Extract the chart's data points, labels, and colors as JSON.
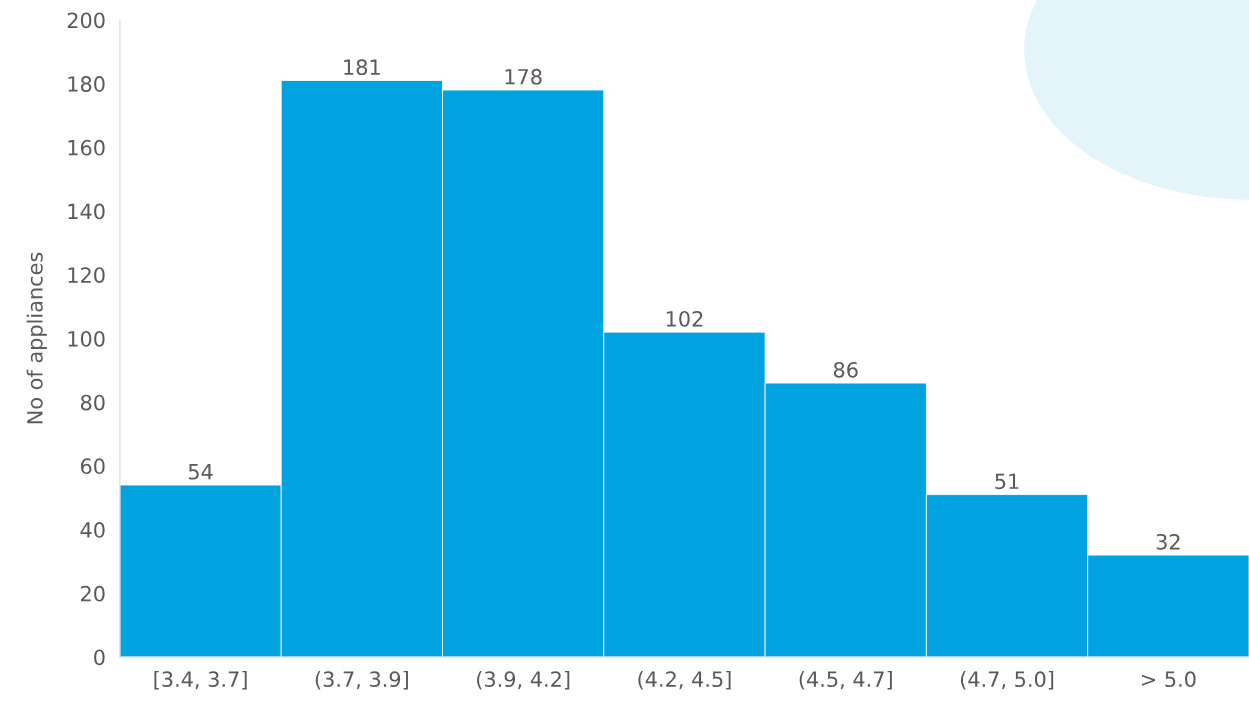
{
  "chart_data": {
    "type": "bar",
    "ylabel": "No of appliances",
    "categories": [
      "[3.4, 3.7]",
      "(3.7, 3.9]",
      "(3.9, 4.2]",
      "(4.2, 4.5]",
      "(4.5, 4.7]",
      "(4.7, 5.0]",
      "> 5.0"
    ],
    "values": [
      54,
      181,
      178,
      102,
      86,
      51,
      32
    ],
    "color": "#00a2e0",
    "ylim": [
      0,
      200
    ],
    "yticks": [
      0,
      20,
      40,
      60,
      80,
      100,
      120,
      140,
      160,
      180,
      200
    ],
    "data_labels": true,
    "grid": false,
    "legend": false
  }
}
